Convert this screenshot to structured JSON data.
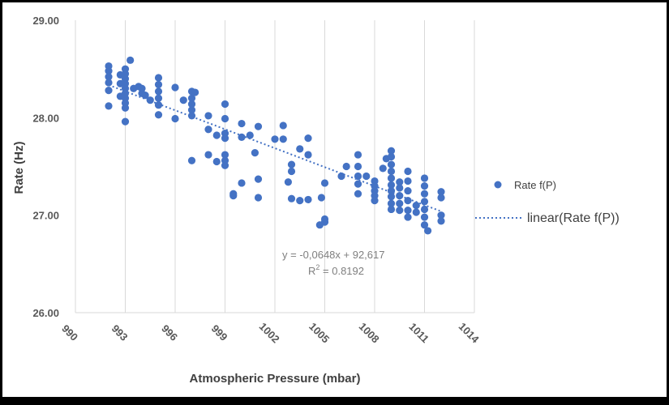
{
  "chart_data": {
    "type": "scatter",
    "xlabel": "Atmospheric Pressure (mbar)",
    "ylabel": "Rate (Hz)",
    "xlim": [
      990,
      1014
    ],
    "ylim": [
      26.0,
      29.0
    ],
    "x_ticks": [
      "990",
      "993",
      "996",
      "999",
      "1002",
      "1005",
      "1008",
      "1011",
      "1014"
    ],
    "y_ticks": [
      "26.00",
      "27.00",
      "28.00",
      "29.00"
    ],
    "grid": "vertical",
    "legend_position": "right",
    "series": [
      {
        "name": "Rate f(P)",
        "color": "#4472c4",
        "points": [
          [
            992,
            28.53
          ],
          [
            992,
            28.48
          ],
          [
            992,
            28.42
          ],
          [
            992,
            28.36
          ],
          [
            992,
            28.28
          ],
          [
            992,
            28.12
          ],
          [
            992.7,
            28.44
          ],
          [
            992.7,
            28.22
          ],
          [
            992.7,
            28.35
          ],
          [
            993,
            28.5
          ],
          [
            993,
            28.45
          ],
          [
            993,
            28.4
          ],
          [
            993,
            28.35
          ],
          [
            993,
            28.3
          ],
          [
            993,
            28.25
          ],
          [
            993,
            28.2
          ],
          [
            993,
            28.15
          ],
          [
            993,
            28.1
          ],
          [
            993,
            27.96
          ],
          [
            993.3,
            28.59
          ],
          [
            993.5,
            28.3
          ],
          [
            993.8,
            28.32
          ],
          [
            994,
            28.3
          ],
          [
            994,
            28.25
          ],
          [
            994.2,
            28.23
          ],
          [
            994.5,
            28.18
          ],
          [
            995,
            28.41
          ],
          [
            995,
            28.34
          ],
          [
            995,
            28.27
          ],
          [
            995,
            28.2
          ],
          [
            995,
            28.13
          ],
          [
            995,
            28.03
          ],
          [
            996,
            28.31
          ],
          [
            996,
            27.99
          ],
          [
            996.5,
            28.18
          ],
          [
            997,
            28.27
          ],
          [
            997,
            28.2
          ],
          [
            997,
            28.14
          ],
          [
            997,
            28.08
          ],
          [
            997,
            28.02
          ],
          [
            997,
            27.56
          ],
          [
            997.2,
            28.26
          ],
          [
            998,
            28.02
          ],
          [
            998,
            27.88
          ],
          [
            998,
            27.62
          ],
          [
            998.5,
            27.55
          ],
          [
            998.5,
            27.82
          ],
          [
            999,
            28.14
          ],
          [
            999,
            27.99
          ],
          [
            999,
            27.84
          ],
          [
            999,
            27.79
          ],
          [
            999,
            27.62
          ],
          [
            999,
            27.56
          ],
          [
            999,
            27.51
          ],
          [
            999.5,
            27.22
          ],
          [
            999.5,
            27.2
          ],
          [
            1000,
            27.94
          ],
          [
            1000,
            27.8
          ],
          [
            1000,
            27.33
          ],
          [
            1000.5,
            27.82
          ],
          [
            1000.8,
            27.64
          ],
          [
            1001,
            27.91
          ],
          [
            1001,
            27.37
          ],
          [
            1001,
            27.18
          ],
          [
            1002,
            27.78
          ],
          [
            1002.5,
            27.92
          ],
          [
            1002.5,
            27.78
          ],
          [
            1002.8,
            27.34
          ],
          [
            1003,
            27.52
          ],
          [
            1003,
            27.45
          ],
          [
            1003,
            27.17
          ],
          [
            1003.5,
            27.68
          ],
          [
            1003.5,
            27.15
          ],
          [
            1004,
            27.79
          ],
          [
            1004,
            27.62
          ],
          [
            1004,
            27.16
          ],
          [
            1004.7,
            26.9
          ],
          [
            1005,
            26.93
          ],
          [
            1005,
            26.96
          ],
          [
            1005,
            27.33
          ],
          [
            1004.8,
            27.18
          ],
          [
            1006,
            27.4
          ],
          [
            1006.3,
            27.5
          ],
          [
            1007,
            27.62
          ],
          [
            1007,
            27.5
          ],
          [
            1007,
            27.4
          ],
          [
            1007,
            27.32
          ],
          [
            1007,
            27.22
          ],
          [
            1007.5,
            27.4
          ],
          [
            1008,
            27.35
          ],
          [
            1008,
            27.3
          ],
          [
            1008,
            27.25
          ],
          [
            1008,
            27.2
          ],
          [
            1008,
            27.15
          ],
          [
            1008.5,
            27.48
          ],
          [
            1008.7,
            27.58
          ],
          [
            1009,
            27.66
          ],
          [
            1009,
            27.6
          ],
          [
            1009,
            27.52
          ],
          [
            1009,
            27.45
          ],
          [
            1009,
            27.38
          ],
          [
            1009,
            27.31
          ],
          [
            1009,
            27.25
          ],
          [
            1009,
            27.19
          ],
          [
            1009,
            27.12
          ],
          [
            1009,
            27.06
          ],
          [
            1009.5,
            27.34
          ],
          [
            1009.5,
            27.28
          ],
          [
            1009.5,
            27.2
          ],
          [
            1009.5,
            27.12
          ],
          [
            1009.5,
            27.05
          ],
          [
            1010,
            27.45
          ],
          [
            1010,
            27.35
          ],
          [
            1010,
            27.25
          ],
          [
            1010,
            27.15
          ],
          [
            1010,
            27.05
          ],
          [
            1010,
            26.98
          ],
          [
            1010.5,
            27.1
          ],
          [
            1010.5,
            27.03
          ],
          [
            1011,
            27.38
          ],
          [
            1011,
            27.3
          ],
          [
            1011,
            27.22
          ],
          [
            1011,
            27.14
          ],
          [
            1011,
            27.06
          ],
          [
            1011,
            26.98
          ],
          [
            1011,
            26.9
          ],
          [
            1011.2,
            26.84
          ],
          [
            1012,
            27.24
          ],
          [
            1012,
            27.18
          ],
          [
            1012,
            27.0
          ],
          [
            1012,
            26.94
          ]
        ]
      }
    ],
    "trendline": {
      "name": "linear(Rate f(P))",
      "type": "linear",
      "slope": -0.0648,
      "intercept": 92.617,
      "x_range": [
        992,
        1012
      ],
      "equation": "y = -0,0648x + 92,617",
      "r2_label": "R",
      "r2_exponent": "2",
      "r2_value": " = 0.8192",
      "color": "#4472c4"
    }
  }
}
